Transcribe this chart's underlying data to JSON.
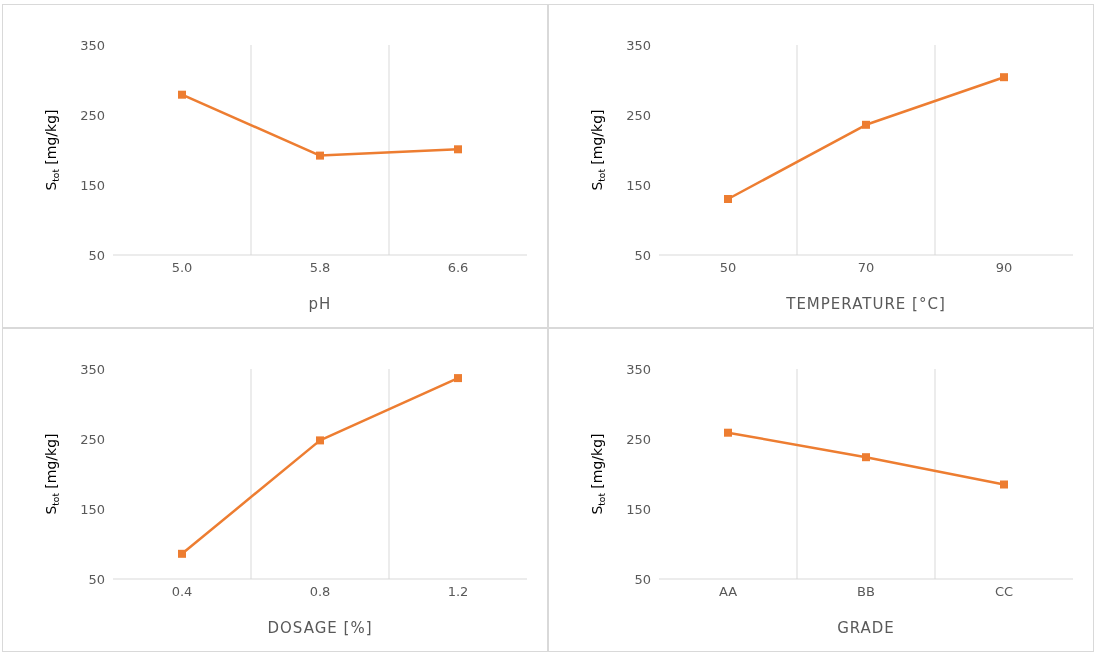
{
  "chart_data": [
    {
      "type": "line",
      "xlabel": "pH",
      "ylabel": "S$_{tot}$ [mg/kg]",
      "categories": [
        "5.0",
        "5.8",
        "6.6"
      ],
      "values": [
        279,
        192,
        201
      ],
      "color": "#ed7d31",
      "marker": "square",
      "ylim": [
        50,
        350
      ],
      "yticks": [
        50,
        150,
        250,
        350
      ],
      "grid": "x"
    },
    {
      "type": "line",
      "xlabel": "TEMPERATURE [°C]",
      "ylabel": "S$_{tot}$ [mg/kg]",
      "categories": [
        "50",
        "70",
        "90"
      ],
      "values": [
        130,
        236,
        304
      ],
      "color": "#ed7d31",
      "marker": "square",
      "ylim": [
        50,
        350
      ],
      "yticks": [
        50,
        150,
        250,
        350
      ],
      "grid": "x"
    },
    {
      "type": "line",
      "xlabel": "DOSAGE [%]",
      "ylabel": "S$_{tot}$ [mg/kg]",
      "categories": [
        "0.4",
        "0.8",
        "1.2"
      ],
      "values": [
        86,
        248,
        337
      ],
      "color": "#ed7d31",
      "marker": "square",
      "ylim": [
        50,
        350
      ],
      "yticks": [
        50,
        150,
        250,
        350
      ],
      "grid": "x"
    },
    {
      "type": "line",
      "xlabel": "GRADE",
      "ylabel": "S$_{tot}$ [mg/kg]",
      "categories": [
        "AA",
        "BB",
        "CC"
      ],
      "values": [
        259,
        224,
        185
      ],
      "color": "#ed7d31",
      "marker": "square",
      "ylim": [
        50,
        350
      ],
      "yticks": [
        50,
        150,
        250,
        350
      ],
      "grid": "x"
    }
  ]
}
